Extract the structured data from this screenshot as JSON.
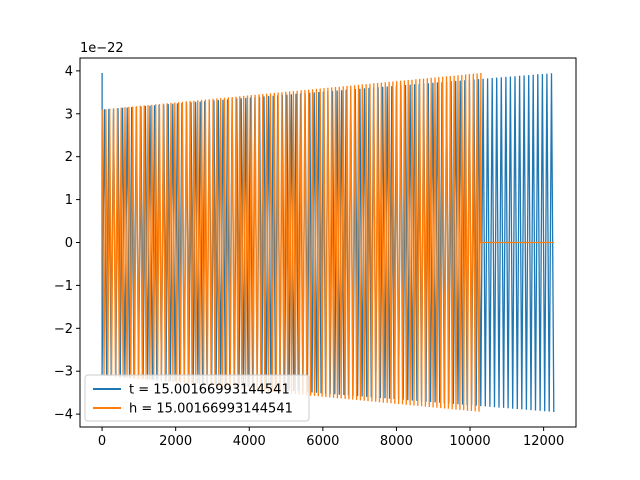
{
  "chart_data": {
    "type": "line",
    "title": "",
    "xlabel": "",
    "ylabel": "",
    "xlim": [
      -600,
      12880
    ],
    "ylim": [
      -4.3,
      4.3
    ],
    "y_offset_text": "1e−22",
    "x_ticks": [
      0,
      2000,
      4000,
      6000,
      8000,
      10000,
      12000
    ],
    "x_tick_labels": [
      "0",
      "2000",
      "4000",
      "6000",
      "8000",
      "10000",
      "12000"
    ],
    "y_ticks": [
      -4,
      -3,
      -2,
      -1,
      0,
      1,
      2,
      3,
      4
    ],
    "y_tick_labels": [
      "−4",
      "−3",
      "−2",
      "−1",
      "0",
      "1",
      "2",
      "3",
      "4"
    ],
    "grid": false,
    "legend_position": "lower-left",
    "series": [
      {
        "name": "t = 15.00166993144541",
        "color": "#1f77b4",
        "x_start": 0,
        "x_end": 12280,
        "amplitude_start": 3.1,
        "amplitude_end": 3.95,
        "initial_spike": 3.95
      },
      {
        "name": "h = 15.00166993144541",
        "color": "#ff7f0e",
        "x_start": 0,
        "x_end": 10300,
        "amplitude_start": 3.1,
        "amplitude_end": 3.95,
        "tail_x_end": 12280,
        "tail_value": 0
      }
    ]
  }
}
